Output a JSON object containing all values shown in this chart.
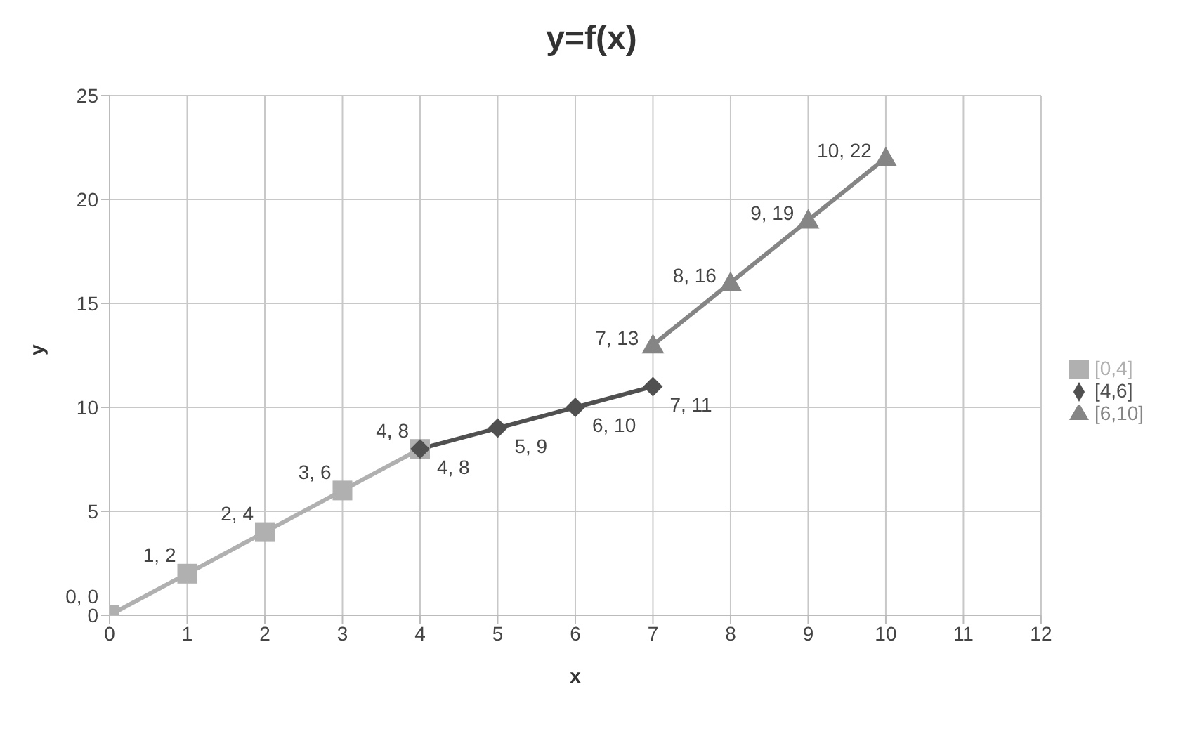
{
  "chart_data": {
    "type": "line",
    "title": "y=f(x)",
    "xlabel": "x",
    "ylabel": "y",
    "xlim": [
      0,
      12
    ],
    "xticks": [
      0,
      1,
      2,
      3,
      4,
      5,
      6,
      7,
      8,
      9,
      10,
      11,
      12
    ],
    "ylim": [
      0,
      25
    ],
    "yticks": [
      0,
      5,
      10,
      15,
      20,
      25
    ],
    "grid": true,
    "legend": "right",
    "series": [
      {
        "name": "[0,4]",
        "color": "#b0b0b0",
        "marker": "square",
        "x": [
          0,
          1,
          2,
          3,
          4
        ],
        "values": [
          0,
          2,
          4,
          6,
          8
        ],
        "value_labels": [
          "0, 0",
          "1, 2",
          "2, 4",
          "3, 6",
          "4, 8"
        ]
      },
      {
        "name": "[4,6]",
        "color": "#505050",
        "marker": "diamond",
        "x": [
          4,
          5,
          6,
          7
        ],
        "values": [
          8,
          9,
          10,
          11
        ],
        "value_labels": [
          "4, 8",
          "5, 9",
          "6, 10",
          "7, 11"
        ]
      },
      {
        "name": "[6,10]",
        "color": "#858585",
        "marker": "triangle",
        "x": [
          7,
          8,
          9,
          10
        ],
        "values": [
          13,
          16,
          19,
          22
        ],
        "value_labels": [
          "7, 13",
          "8, 16",
          "9, 19",
          "10, 22"
        ]
      }
    ]
  }
}
